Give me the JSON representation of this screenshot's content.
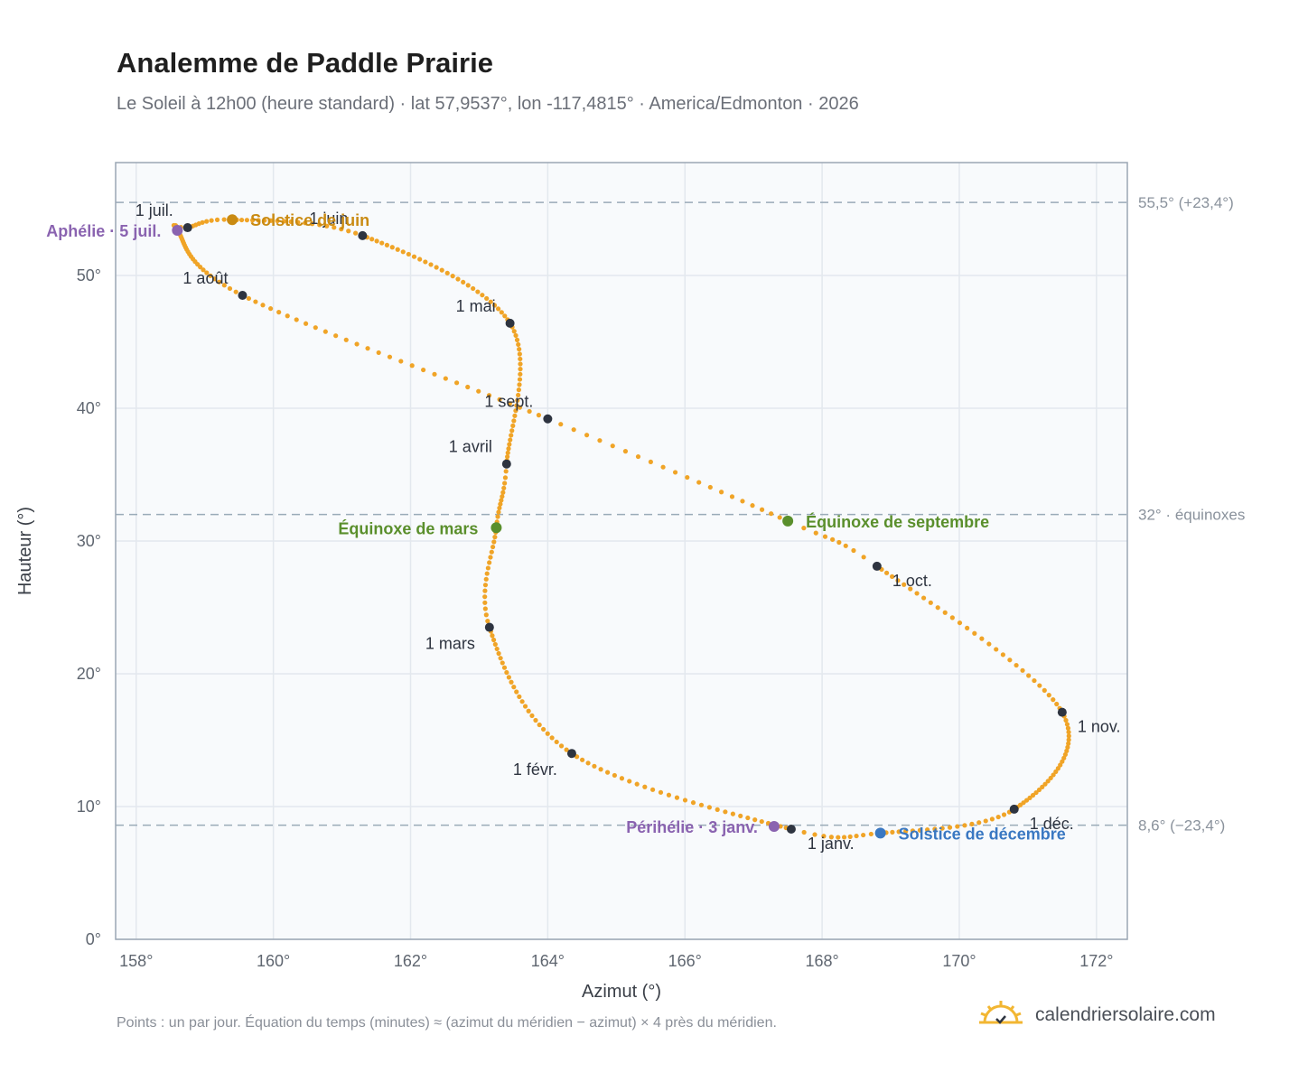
{
  "header": {
    "title": "Analemme de Paddle Prairie",
    "subtitle": "Le Soleil à 12h00 (heure standard) · lat 57,9537°, lon -117,4815° · America/Edmonton · 2026"
  },
  "footer": {
    "note": "Points : un par jour. Équation du temps (minutes) ≈ (azimut du méridien − azimut) × 4 près du méridien.",
    "brand": "calendriersolaire.com"
  },
  "chart_data": {
    "type": "scatter",
    "xlabel": "Azimut (°)",
    "ylabel": "Hauteur (°)",
    "xlim": [
      157.7,
      172.45
    ],
    "ylim": [
      0,
      58.5
    ],
    "x_ticks": [
      158,
      160,
      162,
      164,
      166,
      168,
      170,
      172
    ],
    "x_tick_labels": [
      "158°",
      "160°",
      "162°",
      "164°",
      "166°",
      "168°",
      "170°",
      "172°"
    ],
    "y_ticks": [
      0,
      10,
      20,
      30,
      40,
      50
    ],
    "y_tick_labels": [
      "0°",
      "10°",
      "20°",
      "30°",
      "40°",
      "50°"
    ],
    "grid": true,
    "reference_lines": [
      {
        "y": 55.5,
        "label": "55,5° (+23,4°)"
      },
      {
        "y": 32.0,
        "label": "32° · équinoxes"
      },
      {
        "y": 8.6,
        "label": "8,6° (−23,4°)"
      }
    ],
    "series_color": "#f0a427",
    "month_marker_color": "#2e3440",
    "anchors": [
      {
        "doy": 1,
        "x": 167.55,
        "y": 8.3
      },
      {
        "doy": 32,
        "x": 164.35,
        "y": 14.0
      },
      {
        "doy": 60,
        "x": 163.15,
        "y": 23.5
      },
      {
        "doy": 78,
        "x": 163.25,
        "y": 31.0
      },
      {
        "doy": 91,
        "x": 163.4,
        "y": 35.8
      },
      {
        "doy": 121,
        "x": 163.45,
        "y": 46.4
      },
      {
        "doy": 152,
        "x": 161.3,
        "y": 53.0
      },
      {
        "doy": 172,
        "x": 159.4,
        "y": 54.2
      },
      {
        "doy": 182,
        "x": 158.75,
        "y": 53.6
      },
      {
        "doy": 186,
        "x": 158.6,
        "y": 53.4
      },
      {
        "doy": 213,
        "x": 159.55,
        "y": 48.5
      },
      {
        "doy": 244,
        "x": 164.0,
        "y": 39.2
      },
      {
        "doy": 265,
        "x": 167.5,
        "y": 31.5
      },
      {
        "doy": 274,
        "x": 168.8,
        "y": 28.1
      },
      {
        "doy": 305,
        "x": 171.5,
        "y": 17.1
      },
      {
        "doy": 335,
        "x": 170.8,
        "y": 9.8
      },
      {
        "doy": 355,
        "x": 168.85,
        "y": 8.0
      },
      {
        "doy": 366,
        "x": 167.55,
        "y": 8.3
      }
    ],
    "month_markers": [
      {
        "label": "1 janv.",
        "x": 167.55,
        "y": 8.3,
        "anchor": "start",
        "dx": 18,
        "dy": 22
      },
      {
        "label": "1 févr.",
        "x": 164.35,
        "y": 14.0,
        "anchor": "end",
        "dx": -16,
        "dy": 24
      },
      {
        "label": "1 mars",
        "x": 163.15,
        "y": 23.5,
        "anchor": "end",
        "dx": -16,
        "dy": 24
      },
      {
        "label": "1 avril",
        "x": 163.4,
        "y": 35.8,
        "anchor": "end",
        "dx": -16,
        "dy": -13
      },
      {
        "label": "1 mai",
        "x": 163.45,
        "y": 46.4,
        "anchor": "end",
        "dx": -16,
        "dy": -13
      },
      {
        "label": "1 juin",
        "x": 161.3,
        "y": 53.0,
        "anchor": "end",
        "dx": -16,
        "dy": -13
      },
      {
        "label": "1 juil.",
        "x": 158.75,
        "y": 53.6,
        "anchor": "end",
        "dx": -16,
        "dy": -13
      },
      {
        "label": "1 août",
        "x": 159.55,
        "y": 48.5,
        "anchor": "end",
        "dx": -16,
        "dy": -13
      },
      {
        "label": "1 sept.",
        "x": 164.0,
        "y": 39.2,
        "anchor": "end",
        "dx": -16,
        "dy": -13
      },
      {
        "label": "1 oct.",
        "x": 168.8,
        "y": 28.1,
        "anchor": "start",
        "dx": 17,
        "dy": 22
      },
      {
        "label": "1 nov.",
        "x": 171.5,
        "y": 17.1,
        "anchor": "start",
        "dx": 17,
        "dy": 22
      },
      {
        "label": "1 déc.",
        "x": 170.8,
        "y": 9.8,
        "anchor": "start",
        "dx": 17,
        "dy": 22
      }
    ],
    "events": [
      {
        "label": "Solstice de juin",
        "x": 159.4,
        "y": 54.2,
        "color": "#c98a12",
        "anchor": "start",
        "dx": 20,
        "dy": 7
      },
      {
        "label": "Aphélie · 5 juil.",
        "x": 158.6,
        "y": 53.4,
        "color": "#8a63b0",
        "anchor": "end",
        "dx": -18,
        "dy": 7
      },
      {
        "label": "Équinoxe de mars",
        "x": 163.25,
        "y": 31.0,
        "color": "#5a8f2c",
        "anchor": "end",
        "dx": -20,
        "dy": 7
      },
      {
        "label": "Équinoxe de septembre",
        "x": 167.5,
        "y": 31.5,
        "color": "#5a8f2c",
        "anchor": "start",
        "dx": 20,
        "dy": 7
      },
      {
        "label": "Périhélie · 3 janv.",
        "x": 167.3,
        "y": 8.5,
        "color": "#8a63b0",
        "anchor": "end",
        "dx": -18,
        "dy": 7
      },
      {
        "label": "Solstice de décembre",
        "x": 168.85,
        "y": 8.0,
        "color": "#3a78c2",
        "anchor": "start",
        "dx": 20,
        "dy": 7
      }
    ]
  }
}
